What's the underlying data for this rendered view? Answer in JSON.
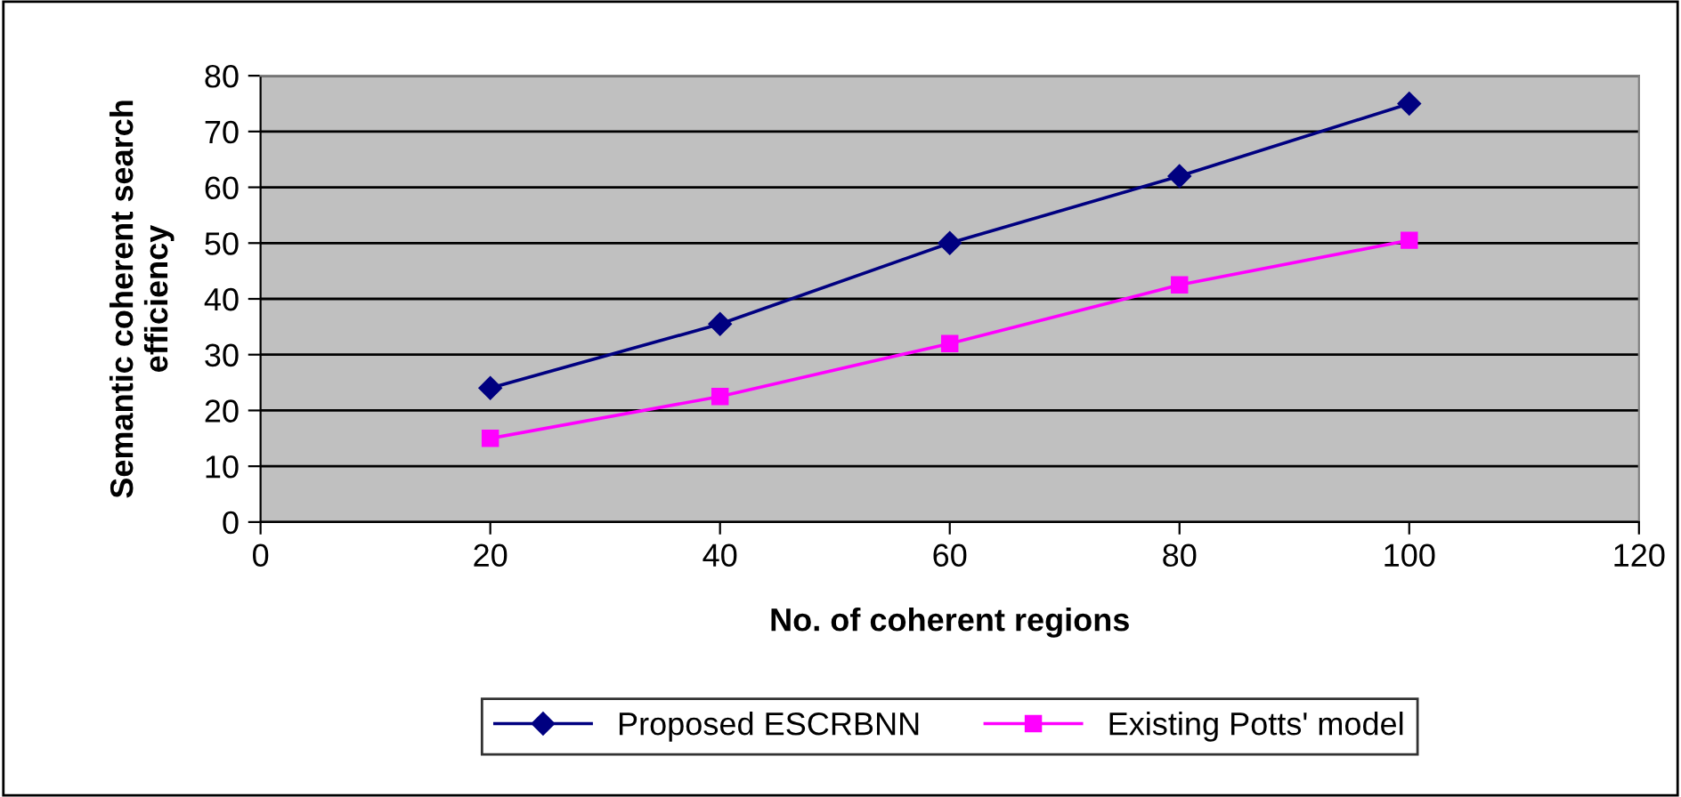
{
  "chart_data": {
    "type": "line",
    "xlabel": "No. of coherent regions",
    "ylabel": "Semantic coherent search\nefficiency",
    "x": [
      20,
      40,
      60,
      80,
      100
    ],
    "series": [
      {
        "name": "Proposed ESCRBNN",
        "color": "#000080",
        "marker": "diamond",
        "values": [
          24,
          35.5,
          50,
          62,
          75
        ]
      },
      {
        "name": "Existing Potts' model",
        "color": "#ff00ff",
        "marker": "square",
        "values": [
          15,
          22.5,
          32,
          42.5,
          50.5
        ]
      }
    ],
    "xlim": [
      0,
      120
    ],
    "xticks": [
      0,
      20,
      40,
      60,
      80,
      100,
      120
    ],
    "ylim": [
      0,
      80
    ],
    "yticks": [
      0,
      10,
      20,
      30,
      40,
      50,
      60,
      70,
      80
    ],
    "grid": "y",
    "legend": "bottom",
    "line_style": "solid"
  }
}
